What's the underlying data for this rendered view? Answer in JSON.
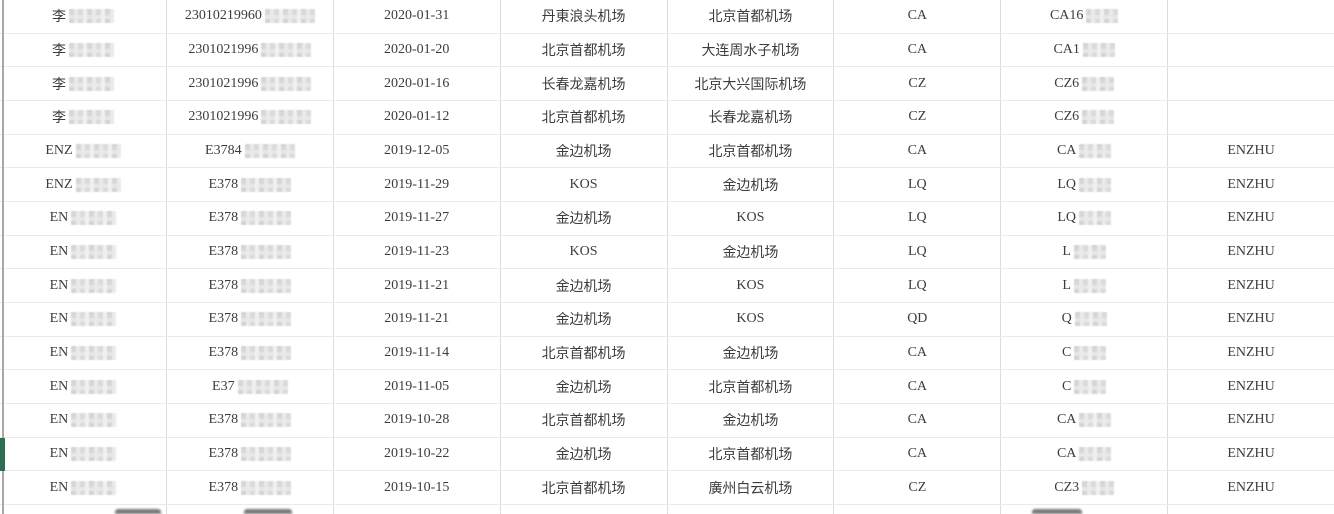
{
  "colors": {
    "row_marker_green": "#2e6e50",
    "left_edge_line_grey": "#a8a8a8",
    "grid_vertical": "#dcdcdc",
    "grid_horizontal": "#eaeaea",
    "text": "#3c3c3c"
  },
  "table": {
    "rows": [
      {
        "name": "李",
        "name_redacted": true,
        "id": "23010219960",
        "id_redacted": true,
        "date": "2020-01-31",
        "departure": "丹東浪头机场",
        "arrival": "北京首都机场",
        "airline": "CA",
        "flight": "CA16",
        "flight_redacted": true,
        "remark": ""
      },
      {
        "name": "李",
        "name_redacted": true,
        "id": "2301021996",
        "id_redacted": true,
        "date": "2020-01-20",
        "departure": "北京首都机场",
        "arrival": "大连周水子机场",
        "airline": "CA",
        "flight": "CA1",
        "flight_redacted": true,
        "remark": ""
      },
      {
        "name": "李",
        "name_redacted": true,
        "id": "2301021996",
        "id_redacted": true,
        "date": "2020-01-16",
        "departure": "长春龙嘉机场",
        "arrival": "北京大兴国际机场",
        "airline": "CZ",
        "flight": "CZ6",
        "flight_redacted": true,
        "remark": ""
      },
      {
        "name": "李",
        "name_redacted": true,
        "id": "2301021996",
        "id_redacted": true,
        "date": "2020-01-12",
        "departure": "北京首都机场",
        "arrival": "长春龙嘉机场",
        "airline": "CZ",
        "flight": "CZ6",
        "flight_redacted": true,
        "remark": ""
      },
      {
        "name": "ENZ",
        "name_redacted": true,
        "id": "E3784",
        "id_redacted": true,
        "date": "2019-12-05",
        "departure": "金边机场",
        "arrival": "北京首都机场",
        "airline": "CA",
        "flight": "CA",
        "flight_redacted": true,
        "remark": "ENZHU"
      },
      {
        "name": "ENZ",
        "name_redacted": true,
        "id": "E378",
        "id_redacted": true,
        "date": "2019-11-29",
        "departure": "KOS",
        "arrival": "金边机场",
        "airline": "LQ",
        "flight": "LQ",
        "flight_redacted": true,
        "remark": "ENZHU"
      },
      {
        "name": "EN",
        "name_redacted": true,
        "id": "E378",
        "id_redacted": true,
        "date": "2019-11-27",
        "departure": "金边机场",
        "arrival": "KOS",
        "airline": "LQ",
        "flight": "LQ",
        "flight_redacted": true,
        "remark": "ENZHU"
      },
      {
        "name": "EN",
        "name_redacted": true,
        "id": "E378",
        "id_redacted": true,
        "date": "2019-11-23",
        "departure": "KOS",
        "arrival": "金边机场",
        "airline": "LQ",
        "flight": "L",
        "flight_redacted": true,
        "remark": "ENZHU"
      },
      {
        "name": "EN",
        "name_redacted": true,
        "id": "E378",
        "id_redacted": true,
        "date": "2019-11-21",
        "departure": "金边机场",
        "arrival": "KOS",
        "airline": "LQ",
        "flight": "L",
        "flight_redacted": true,
        "remark": "ENZHU"
      },
      {
        "name": "EN",
        "name_redacted": true,
        "id": "E378",
        "id_redacted": true,
        "date": "2019-11-21",
        "departure": "金边机场",
        "arrival": "KOS",
        "airline": "QD",
        "flight": "Q",
        "flight_redacted": true,
        "remark": "ENZHU"
      },
      {
        "name": "EN",
        "name_redacted": true,
        "id": "E378",
        "id_redacted": true,
        "date": "2019-11-14",
        "departure": "北京首都机场",
        "arrival": "金边机场",
        "airline": "CA",
        "flight": "C",
        "flight_redacted": true,
        "remark": "ENZHU"
      },
      {
        "name": "EN",
        "name_redacted": true,
        "id": "E37",
        "id_redacted": true,
        "date": "2019-11-05",
        "departure": "金边机场",
        "arrival": "北京首都机场",
        "airline": "CA",
        "flight": "C",
        "flight_redacted": true,
        "remark": "ENZHU"
      },
      {
        "name": "EN",
        "name_redacted": true,
        "id": "E378",
        "id_redacted": true,
        "date": "2019-10-28",
        "departure": "北京首都机场",
        "arrival": "金边机场",
        "airline": "CA",
        "flight": "CA",
        "flight_redacted": true,
        "remark": "ENZHU"
      },
      {
        "name": "EN",
        "name_redacted": true,
        "id": "E378",
        "id_redacted": true,
        "date": "2019-10-22",
        "departure": "金边机场",
        "arrival": "北京首都机场",
        "airline": "CA",
        "flight": "CA",
        "flight_redacted": true,
        "remark": "ENZHU"
      },
      {
        "name": "EN",
        "name_redacted": true,
        "id": "E378",
        "id_redacted": true,
        "date": "2019-10-15",
        "departure": "北京首都机场",
        "arrival": "廣州白云机场",
        "airline": "CZ",
        "flight": "CZ3",
        "flight_redacted": true,
        "remark": "ENZHU"
      }
    ]
  },
  "row_marker": {
    "row_index": 13
  },
  "partial_row": {
    "smudge_columns": [
      "name",
      "id",
      "flight"
    ]
  }
}
